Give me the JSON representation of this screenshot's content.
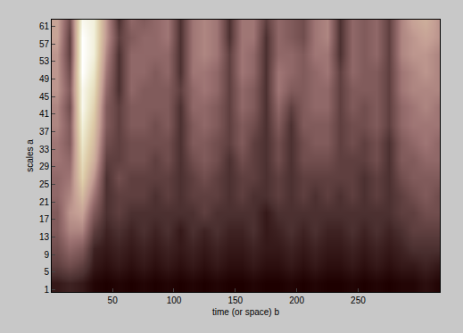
{
  "chart_data": {
    "type": "heatmap",
    "x_label": "time (or space) b",
    "y_label": "scales a",
    "x": [
      5,
      15,
      25,
      35,
      45,
      55,
      65,
      75,
      85,
      95,
      105,
      115,
      125,
      135,
      145,
      155,
      165,
      175,
      185,
      195,
      205,
      215,
      225,
      235,
      245,
      255,
      265,
      275,
      285,
      295,
      305,
      315
    ],
    "y": [
      2.5,
      6.5,
      10.5,
      14.5,
      18.5,
      22.5,
      26.5,
      30.5,
      34.5,
      38.5,
      42.5,
      46.5,
      50.5,
      54.5,
      58.5,
      62.5
    ],
    "z": [
      [
        0.1,
        0.12,
        0.1,
        0.06,
        0.05,
        0.06,
        0.05,
        0.06,
        0.05,
        0.06,
        0.05,
        0.06,
        0.05,
        0.06,
        0.05,
        0.05,
        0.06,
        0.05,
        0.05,
        0.06,
        0.05,
        0.06,
        0.05,
        0.05,
        0.06,
        0.05,
        0.06,
        0.05,
        0.06,
        0.06,
        0.08,
        0.06
      ],
      [
        0.2,
        0.25,
        0.2,
        0.1,
        0.08,
        0.1,
        0.08,
        0.1,
        0.08,
        0.1,
        0.08,
        0.1,
        0.08,
        0.1,
        0.08,
        0.08,
        0.1,
        0.08,
        0.08,
        0.1,
        0.08,
        0.1,
        0.08,
        0.08,
        0.1,
        0.08,
        0.1,
        0.08,
        0.1,
        0.1,
        0.12,
        0.1
      ],
      [
        0.25,
        0.35,
        0.3,
        0.12,
        0.1,
        0.12,
        0.1,
        0.12,
        0.1,
        0.12,
        0.1,
        0.12,
        0.1,
        0.12,
        0.1,
        0.1,
        0.12,
        0.1,
        0.1,
        0.12,
        0.1,
        0.12,
        0.1,
        0.1,
        0.12,
        0.1,
        0.12,
        0.1,
        0.12,
        0.15,
        0.15,
        0.15
      ],
      [
        0.3,
        0.45,
        0.45,
        0.2,
        0.12,
        0.15,
        0.12,
        0.15,
        0.12,
        0.15,
        0.1,
        0.15,
        0.12,
        0.15,
        0.12,
        0.12,
        0.15,
        0.1,
        0.12,
        0.15,
        0.12,
        0.15,
        0.12,
        0.12,
        0.15,
        0.12,
        0.15,
        0.12,
        0.15,
        0.2,
        0.2,
        0.2
      ],
      [
        0.3,
        0.5,
        0.55,
        0.3,
        0.15,
        0.2,
        0.15,
        0.15,
        0.15,
        0.15,
        0.15,
        0.15,
        0.2,
        0.15,
        0.15,
        0.15,
        0.15,
        0.1,
        0.15,
        0.15,
        0.15,
        0.15,
        0.15,
        0.15,
        0.15,
        0.15,
        0.15,
        0.15,
        0.2,
        0.2,
        0.25,
        0.25
      ],
      [
        0.35,
        0.45,
        0.65,
        0.4,
        0.15,
        0.2,
        0.2,
        0.2,
        0.15,
        0.2,
        0.15,
        0.2,
        0.2,
        0.2,
        0.15,
        0.2,
        0.15,
        0.15,
        0.2,
        0.15,
        0.2,
        0.15,
        0.2,
        0.15,
        0.2,
        0.15,
        0.2,
        0.15,
        0.2,
        0.25,
        0.3,
        0.25
      ],
      [
        0.35,
        0.4,
        0.75,
        0.5,
        0.15,
        0.25,
        0.2,
        0.2,
        0.2,
        0.2,
        0.15,
        0.2,
        0.25,
        0.2,
        0.15,
        0.2,
        0.2,
        0.15,
        0.2,
        0.15,
        0.2,
        0.2,
        0.2,
        0.2,
        0.2,
        0.15,
        0.2,
        0.15,
        0.25,
        0.3,
        0.3,
        0.3
      ],
      [
        0.4,
        0.35,
        0.8,
        0.6,
        0.2,
        0.2,
        0.25,
        0.25,
        0.2,
        0.25,
        0.15,
        0.25,
        0.3,
        0.25,
        0.15,
        0.25,
        0.2,
        0.15,
        0.25,
        0.15,
        0.25,
        0.25,
        0.25,
        0.2,
        0.2,
        0.2,
        0.25,
        0.15,
        0.3,
        0.3,
        0.35,
        0.35
      ],
      [
        0.4,
        0.3,
        0.85,
        0.65,
        0.25,
        0.2,
        0.25,
        0.25,
        0.25,
        0.25,
        0.15,
        0.3,
        0.3,
        0.25,
        0.2,
        0.3,
        0.2,
        0.15,
        0.25,
        0.15,
        0.25,
        0.3,
        0.3,
        0.2,
        0.25,
        0.2,
        0.25,
        0.15,
        0.3,
        0.35,
        0.4,
        0.35
      ],
      [
        0.45,
        0.3,
        0.9,
        0.7,
        0.3,
        0.2,
        0.3,
        0.3,
        0.25,
        0.3,
        0.15,
        0.3,
        0.35,
        0.3,
        0.2,
        0.3,
        0.25,
        0.15,
        0.3,
        0.15,
        0.3,
        0.3,
        0.3,
        0.2,
        0.25,
        0.25,
        0.3,
        0.2,
        0.35,
        0.4,
        0.4,
        0.4
      ],
      [
        0.45,
        0.25,
        0.95,
        0.75,
        0.3,
        0.2,
        0.3,
        0.3,
        0.3,
        0.3,
        0.15,
        0.35,
        0.35,
        0.3,
        0.2,
        0.35,
        0.3,
        0.15,
        0.35,
        0.2,
        0.3,
        0.35,
        0.35,
        0.2,
        0.3,
        0.25,
        0.3,
        0.2,
        0.35,
        0.4,
        0.45,
        0.4
      ],
      [
        0.5,
        0.3,
        0.95,
        0.8,
        0.35,
        0.15,
        0.35,
        0.3,
        0.3,
        0.3,
        0.2,
        0.35,
        0.4,
        0.35,
        0.2,
        0.35,
        0.3,
        0.15,
        0.4,
        0.3,
        0.3,
        0.35,
        0.35,
        0.2,
        0.3,
        0.3,
        0.3,
        0.2,
        0.4,
        0.45,
        0.45,
        0.45
      ],
      [
        0.5,
        0.25,
        1.0,
        0.85,
        0.4,
        0.15,
        0.35,
        0.35,
        0.3,
        0.35,
        0.15,
        0.4,
        0.4,
        0.35,
        0.2,
        0.4,
        0.35,
        0.15,
        0.4,
        0.35,
        0.3,
        0.35,
        0.4,
        0.2,
        0.35,
        0.3,
        0.3,
        0.2,
        0.4,
        0.45,
        0.5,
        0.45
      ],
      [
        0.5,
        0.2,
        1.0,
        0.9,
        0.45,
        0.15,
        0.35,
        0.35,
        0.35,
        0.35,
        0.15,
        0.4,
        0.45,
        0.4,
        0.2,
        0.4,
        0.35,
        0.15,
        0.35,
        0.35,
        0.3,
        0.4,
        0.4,
        0.15,
        0.35,
        0.3,
        0.35,
        0.2,
        0.45,
        0.5,
        0.5,
        0.45
      ],
      [
        0.55,
        0.2,
        1.0,
        0.9,
        0.5,
        0.2,
        0.3,
        0.35,
        0.35,
        0.4,
        0.15,
        0.4,
        0.45,
        0.4,
        0.15,
        0.4,
        0.4,
        0.15,
        0.35,
        0.3,
        0.25,
        0.4,
        0.45,
        0.15,
        0.35,
        0.3,
        0.35,
        0.2,
        0.45,
        0.5,
        0.55,
        0.5
      ],
      [
        0.55,
        0.25,
        0.95,
        0.9,
        0.5,
        0.15,
        0.35,
        0.3,
        0.35,
        0.4,
        0.15,
        0.4,
        0.45,
        0.4,
        0.15,
        0.4,
        0.4,
        0.2,
        0.35,
        0.3,
        0.25,
        0.4,
        0.45,
        0.15,
        0.35,
        0.3,
        0.35,
        0.2,
        0.45,
        0.55,
        0.6,
        0.5
      ]
    ],
    "xlim": [
      0.5,
      316.5
    ],
    "ylim": [
      0.5,
      62.5
    ],
    "xticks": [
      50,
      100,
      150,
      200,
      250
    ],
    "yticks": [
      1,
      5,
      9,
      13,
      17,
      21,
      25,
      29,
      33,
      37,
      41,
      45,
      49,
      53,
      57,
      61
    ]
  }
}
